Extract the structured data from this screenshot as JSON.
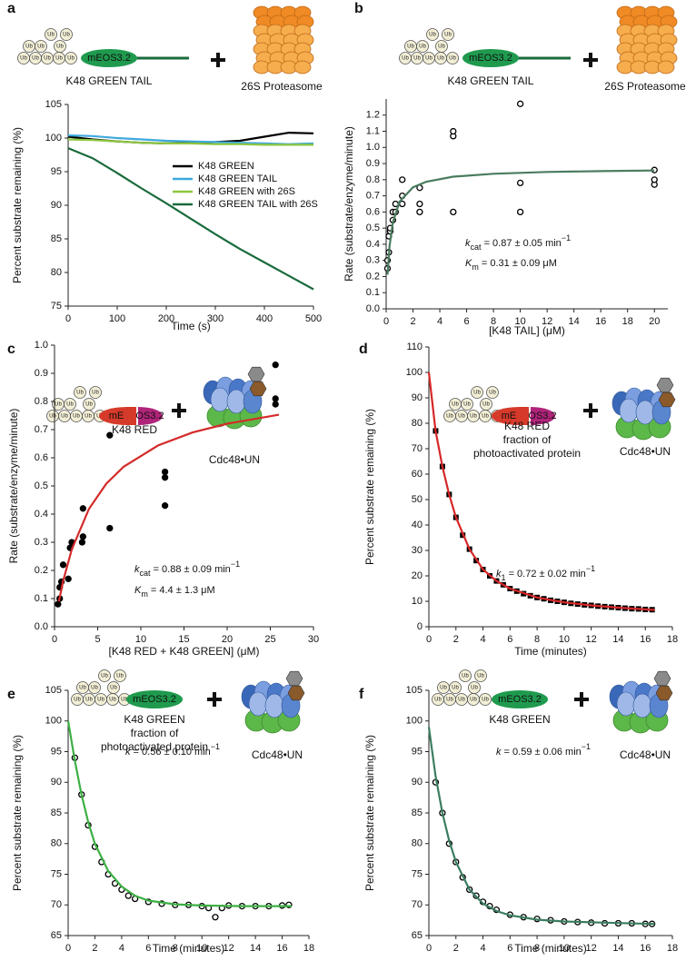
{
  "chart_data": [
    {
      "type": "line",
      "panel": "a",
      "diagram": {
        "ub": "Ub",
        "tag": [
          "mEOS3.2"
        ],
        "substrate": [
          "K48 GREEN TAIL"
        ],
        "enzyme": "26S Proteasome"
      },
      "xlabel": "Time (s)",
      "ylabel": "Percent substrate remaining (%)",
      "xlim": [
        0,
        500
      ],
      "ylim": [
        75,
        105
      ],
      "xticks": [
        0,
        100,
        200,
        300,
        400,
        500
      ],
      "yticks": [
        75,
        80,
        85,
        90,
        95,
        100,
        105
      ],
      "legend": "center right",
      "x": [
        0,
        50,
        100,
        150,
        200,
        250,
        300,
        350,
        400,
        450,
        500
      ],
      "series": [
        {
          "name": "K48 GREEN",
          "color": "#000000",
          "values": [
            100.2,
            99.8,
            99.5,
            99.3,
            99.2,
            99.3,
            99.4,
            99.6,
            100.2,
            100.8,
            100.7
          ]
        },
        {
          "name": "K48 GREEN TAIL",
          "color": "#3fa9dc",
          "values": [
            100.4,
            100.3,
            100.0,
            99.8,
            99.6,
            99.5,
            99.4,
            99.3,
            99.2,
            99.1,
            99.2
          ]
        },
        {
          "name": "K48 GREEN with 26S",
          "color": "#8cc63f",
          "values": [
            99.8,
            99.7,
            99.5,
            99.3,
            99.2,
            99.2,
            99.1,
            99.1,
            99.0,
            99.0,
            99.0
          ]
        },
        {
          "name": "K48 GREEN TAIL with 26S",
          "color": "#1a6b3c",
          "values": [
            98.5,
            97.0,
            94.8,
            92.5,
            90.3,
            88.0,
            85.7,
            83.5,
            81.5,
            79.5,
            77.5
          ]
        }
      ]
    },
    {
      "type": "scatter",
      "panel": "b",
      "diagram": {
        "ub": "Ub",
        "tag": [
          "mEOS3.2"
        ],
        "substrate": [
          "K48 GREEN TAIL"
        ],
        "enzyme": "26S Proteasome"
      },
      "xlabel": "[K48 TAIL] (μM)",
      "ylabel": "Rate (substrate/enzyme/minute)",
      "xlim": [
        0,
        21
      ],
      "ylim": [
        0,
        1.3
      ],
      "xticks": [
        0,
        2,
        4,
        6,
        8,
        10,
        12,
        14,
        16,
        18,
        20
      ],
      "yticks": [
        {
          "value": 0,
          "label": "0.0"
        },
        0.1,
        0.2,
        0.3,
        0.4,
        0.5,
        0.6,
        0.7,
        0.8,
        0.9,
        {
          "value": 1,
          "label": "1.0"
        },
        1.1,
        1.2
      ],
      "annotations": [
        [
          {
            "text": "k",
            "kind": "i"
          },
          {
            "text": "cat",
            "kind": "sub"
          },
          {
            "text": " = 0.87 ± 0.05 min",
            "kind": "plain"
          },
          {
            "text": "−1",
            "kind": "sup"
          }
        ],
        [
          {
            "text": "K",
            "kind": "i"
          },
          {
            "text": "m",
            "kind": "sub"
          },
          {
            "text": " = 0.31 ± 0.09 μM",
            "kind": "plain"
          }
        ]
      ],
      "series": [
        {
          "style": "markers",
          "marker": "open-circle",
          "color": "#000000",
          "x": [
            0.1,
            0.1,
            0.2,
            0.2,
            0.3,
            0.3,
            0.5,
            0.5,
            0.7,
            0.7,
            1.2,
            1.2,
            1.2,
            2.5,
            2.5,
            2.5,
            5,
            5,
            5,
            10,
            10,
            10,
            20,
            20,
            20
          ],
          "values": [
            0.25,
            0.3,
            0.35,
            0.45,
            0.48,
            0.5,
            0.55,
            0.6,
            0.6,
            0.65,
            0.65,
            0.7,
            0.8,
            0.6,
            0.65,
            0.75,
            0.6,
            1.07,
            1.1,
            0.6,
            0.78,
            1.27,
            0.77,
            0.8,
            0.86
          ]
        },
        {
          "style": "line",
          "color": "#4a7c5e",
          "x": [
            0.1,
            0.25,
            0.5,
            1,
            2,
            3,
            5,
            8,
            12,
            16,
            20
          ],
          "values": [
            0.212,
            0.388,
            0.537,
            0.664,
            0.753,
            0.788,
            0.819,
            0.837,
            0.848,
            0.853,
            0.857
          ]
        }
      ]
    },
    {
      "type": "scatter",
      "panel": "c",
      "diagram": {
        "ub": "Ub",
        "tag": [
          "mE",
          "OS3.2"
        ],
        "substrate": [
          "K48 RED"
        ],
        "enzyme": "Cdc48•UN"
      },
      "xlabel": "[K48 RED + K48 GREEN] (μM)",
      "ylabel": "Rate (substrate/enzyme/minute)",
      "xlim": [
        0,
        30
      ],
      "ylim": [
        0,
        1
      ],
      "xticks": [
        0,
        5,
        10,
        15,
        20,
        25,
        30
      ],
      "yticks": [
        {
          "value": 0,
          "label": "0.0"
        },
        0.1,
        0.2,
        0.3,
        0.4,
        0.5,
        0.6,
        0.7,
        0.8,
        0.9,
        {
          "value": 1,
          "label": "1.0"
        }
      ],
      "annotations": [
        [
          {
            "text": "k",
            "kind": "i"
          },
          {
            "text": "cat",
            "kind": "sub"
          },
          {
            "text": " = 0.88 ± 0.09 min",
            "kind": "plain"
          },
          {
            "text": "−1",
            "kind": "sup"
          }
        ],
        [
          {
            "text": "K",
            "kind": "i"
          },
          {
            "text": "m",
            "kind": "sub"
          },
          {
            "text": " = 4.4 ± 1.3 μM",
            "kind": "plain"
          }
        ]
      ],
      "series": [
        {
          "style": "markers",
          "marker": "circle",
          "color": "#000000",
          "x": [
            0.4,
            0.6,
            0.6,
            0.8,
            1,
            1.6,
            1.8,
            2,
            3.2,
            3.3,
            3.3,
            6.4,
            6.4,
            12.8,
            12.8,
            12.8,
            25.6,
            25.6,
            25.6
          ],
          "values": [
            0.08,
            0.1,
            0.14,
            0.16,
            0.22,
            0.17,
            0.28,
            0.3,
            0.3,
            0.32,
            0.42,
            0.35,
            0.68,
            0.43,
            0.53,
            0.55,
            0.79,
            0.81,
            0.93
          ]
        },
        {
          "style": "line",
          "color": "#d42a2a",
          "x": [
            0.5,
            1,
            2,
            4,
            6,
            8,
            12,
            16,
            20,
            26
          ],
          "values": [
            0.09,
            0.163,
            0.275,
            0.419,
            0.508,
            0.568,
            0.644,
            0.69,
            0.721,
            0.753
          ]
        }
      ]
    },
    {
      "type": "scatter",
      "panel": "d",
      "diagram": {
        "ub": "Ub",
        "tag": [
          "mE",
          "OS3.2"
        ],
        "substrate": [
          "K48 RED",
          "fraction of",
          "photoactivated protein"
        ],
        "enzyme": "Cdc48•UN"
      },
      "xlabel": "Time (minutes)",
      "ylabel": "Percent substrate remaining (%)",
      "xlim": [
        0,
        18
      ],
      "ylim": [
        0,
        110
      ],
      "xticks": [
        0,
        2,
        4,
        6,
        8,
        10,
        12,
        14,
        16,
        18
      ],
      "yticks": [
        0,
        10,
        20,
        30,
        40,
        50,
        60,
        70,
        80,
        90,
        100,
        110
      ],
      "annotations": [
        [
          {
            "text": "k",
            "kind": "i"
          },
          {
            "text": "1",
            "kind": "sub"
          },
          {
            "text": " = 0.72 ± 0.02 min",
            "kind": "plain"
          },
          {
            "text": "−1",
            "kind": "sup"
          }
        ]
      ],
      "series": [
        {
          "style": "markers",
          "marker": "square",
          "color": "#000000",
          "x": [
            0.5,
            1,
            1.5,
            2,
            2.5,
            3,
            3.5,
            4,
            4.5,
            5,
            5.5,
            6,
            6.5,
            7,
            7.5,
            8,
            8.5,
            9,
            9.5,
            10,
            10.5,
            11,
            11.5,
            12,
            12.5,
            13,
            13.5,
            14,
            14.5,
            15,
            15.5,
            16,
            16.5
          ],
          "values": [
            77,
            63,
            52,
            43,
            36,
            30.5,
            26,
            22.5,
            20,
            18,
            16.5,
            15,
            14,
            13,
            12.2,
            11.5,
            11,
            10.4,
            10,
            9.6,
            9.2,
            8.9,
            8.6,
            8.4,
            8.1,
            7.9,
            7.7,
            7.5,
            7.3,
            7.1,
            7,
            6.8,
            6.7
          ]
        },
        {
          "style": "line",
          "color": "#d62728",
          "x": [
            0,
            0.5,
            1,
            1.5,
            2,
            3,
            4,
            5,
            6,
            8,
            10,
            12,
            14,
            16.7
          ],
          "values": [
            100,
            77,
            63,
            52,
            43,
            30.5,
            22.5,
            18,
            15,
            11.5,
            9.6,
            8.4,
            7.5,
            6.6
          ]
        }
      ]
    },
    {
      "type": "scatter",
      "panel": "e",
      "diagram": {
        "ub": "Ub",
        "tag": [
          "mEOS3.2"
        ],
        "substrate": [
          "K48 GREEN",
          "fraction of",
          "photoactivated protein"
        ],
        "enzyme": "Cdc48•UN"
      },
      "xlabel": "Time (minutes)",
      "ylabel": "Percent substrate remaining (%)",
      "xlim": [
        0,
        18
      ],
      "ylim": [
        65,
        105
      ],
      "xticks": [
        0,
        2,
        4,
        6,
        8,
        10,
        12,
        14,
        16,
        18
      ],
      "yticks": [
        65,
        70,
        75,
        80,
        85,
        90,
        95,
        100,
        105
      ],
      "annotations": [
        [
          {
            "text": "k",
            "kind": "i"
          },
          {
            "text": " = 0.56 ± 0.10 min",
            "kind": "plain"
          },
          {
            "text": "−1",
            "kind": "sup"
          }
        ]
      ],
      "series": [
        {
          "style": "markers",
          "marker": "open-circle",
          "color": "#000000",
          "x": [
            0.5,
            1,
            1.5,
            2,
            2.5,
            3,
            3.5,
            4,
            4.5,
            5,
            6,
            7,
            8,
            9,
            10,
            10.5,
            11,
            11.5,
            12,
            13,
            14,
            15,
            16,
            16.5
          ],
          "values": [
            94,
            88,
            83,
            79.5,
            77,
            75,
            73.5,
            72.5,
            71.5,
            71,
            70.5,
            70.2,
            70,
            70,
            69.8,
            69.5,
            68,
            69.5,
            69.9,
            69.8,
            69.8,
            69.8,
            69.9,
            70
          ]
        },
        {
          "style": "line",
          "color": "#3cb043",
          "x": [
            0,
            0.5,
            1,
            1.5,
            2,
            3,
            4,
            5,
            6,
            8,
            10,
            13,
            16.7
          ],
          "values": [
            100,
            93.5,
            88,
            83.5,
            80,
            75.5,
            73,
            71.5,
            70.7,
            70.1,
            69.9,
            69.8,
            69.8
          ]
        }
      ]
    },
    {
      "type": "scatter",
      "panel": "f",
      "diagram": {
        "ub": "Ub",
        "tag": [
          "mEOS3.2"
        ],
        "substrate": [
          "K48 GREEN"
        ],
        "enzyme": "Cdc48•UN"
      },
      "xlabel": "Time (minutes)",
      "ylabel": "Percent substrate remaining (%)",
      "xlim": [
        0,
        18
      ],
      "ylim": [
        65,
        105
      ],
      "xticks": [
        0,
        2,
        4,
        6,
        8,
        10,
        12,
        14,
        16,
        18
      ],
      "yticks": [
        65,
        70,
        75,
        80,
        85,
        90,
        95,
        100,
        105
      ],
      "annotations": [
        [
          {
            "text": "k",
            "kind": "i"
          },
          {
            "text": " = 0.59 ± 0.06 min",
            "kind": "plain"
          },
          {
            "text": "−1",
            "kind": "sup"
          }
        ]
      ],
      "series": [
        {
          "style": "markers",
          "marker": "open-circle",
          "color": "#000000",
          "x": [
            0.5,
            1,
            1.5,
            2,
            2.5,
            3,
            3.5,
            4,
            4.5,
            5,
            6,
            7,
            8,
            9,
            10,
            11,
            12,
            13,
            14,
            15,
            16,
            16.5
          ],
          "values": [
            90,
            85,
            80,
            77,
            74.5,
            72.5,
            71.5,
            70.5,
            69.8,
            69.2,
            68.4,
            68,
            67.7,
            67.5,
            67.3,
            67.2,
            67.1,
            67,
            67,
            67,
            66.9,
            66.9
          ]
        },
        {
          "style": "line",
          "color": "#3a7d60",
          "x": [
            0,
            0.5,
            1,
            1.5,
            2,
            3,
            4,
            5,
            6,
            8,
            10,
            13,
            16.7
          ],
          "values": [
            99,
            91,
            85,
            80.5,
            77,
            72.5,
            70.2,
            69,
            68.3,
            67.6,
            67.3,
            67.1,
            66.9
          ]
        }
      ]
    }
  ]
}
